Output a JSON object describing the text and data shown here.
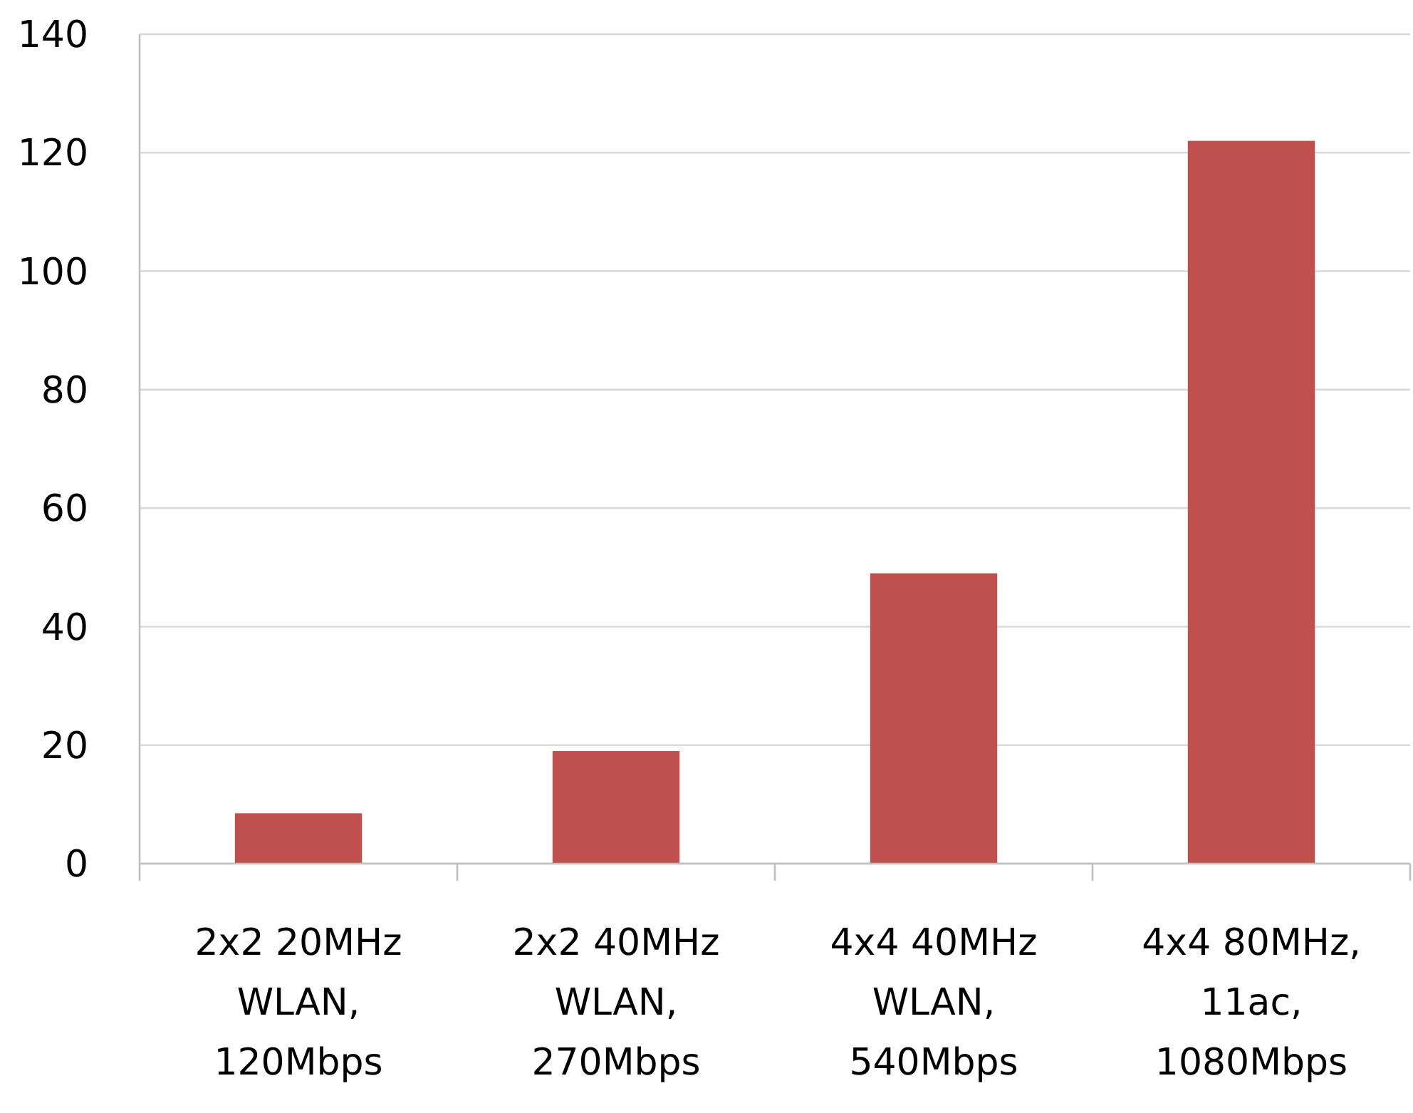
{
  "chart_data": {
    "type": "bar",
    "categories": [
      "2x2 20MHz WLAN, 120Mbps",
      "2x2 40MHz WLAN, 270Mbps",
      "4x4 40MHz WLAN, 540Mbps",
      "4x4 80MHz, 11ac, 1080Mbps"
    ],
    "values": [
      8.5,
      19,
      49,
      122
    ],
    "color": "#c0504d",
    "ylim": [
      0,
      140
    ],
    "yticks": [
      0,
      20,
      40,
      60,
      80,
      100,
      120,
      140
    ],
    "grid": "y"
  }
}
